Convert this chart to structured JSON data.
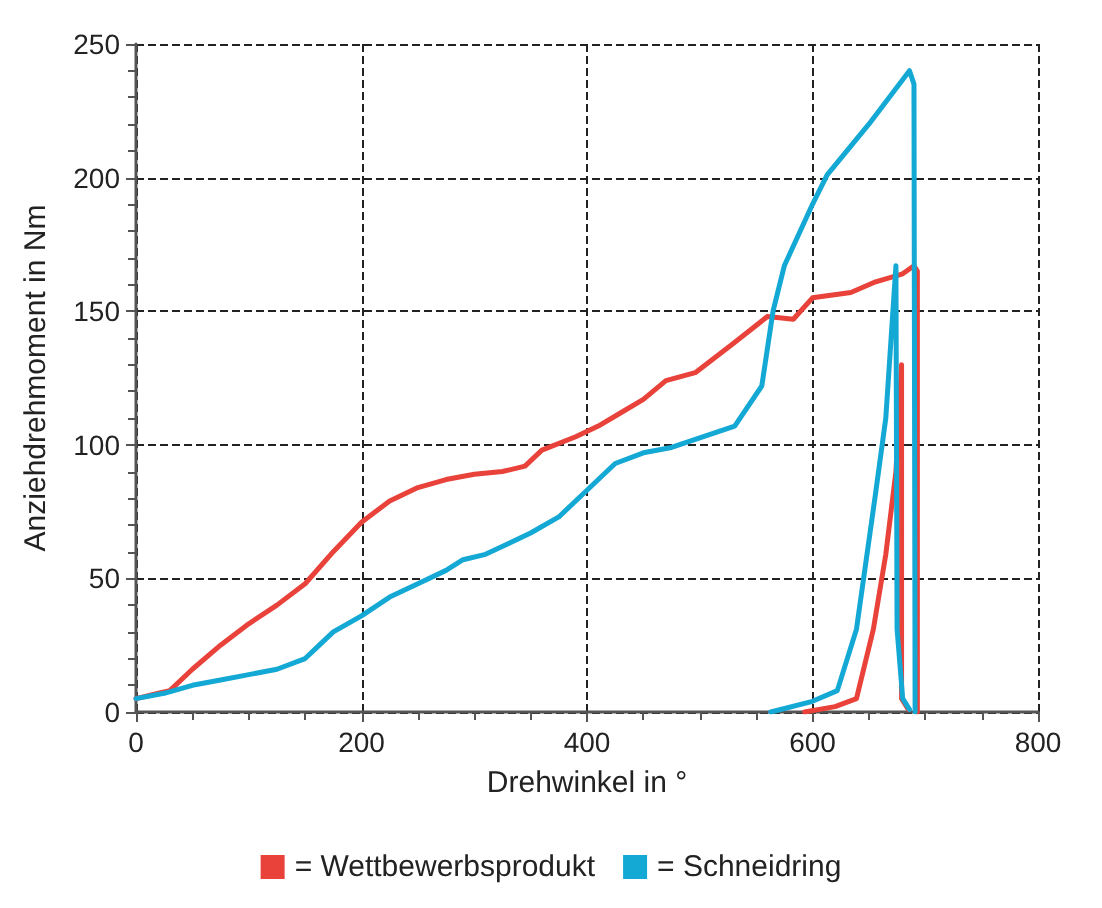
{
  "chart_data": {
    "type": "line",
    "xlabel": "Drehwinkel in °",
    "ylabel": "Anziehdrehmoment in Nm",
    "xlim": [
      0,
      800
    ],
    "xticks": [
      0,
      200,
      400,
      600,
      800
    ],
    "ylim": [
      0,
      250
    ],
    "yticks": [
      0,
      50,
      100,
      150,
      200,
      250
    ],
    "grid": true,
    "legend": "bottom",
    "marker": "none",
    "line_style": "solid",
    "series": [
      {
        "name": "= Wettbewerbsprodukt",
        "color": "#e8423a",
        "x": [
          0,
          20,
          30,
          50,
          75,
          100,
          125,
          150,
          175,
          200,
          225,
          250,
          275,
          300,
          325,
          345,
          360,
          390,
          410,
          430,
          450,
          470,
          496,
          530,
          560,
          583,
          600,
          634,
          656,
          680,
          690,
          693,
          693
        ],
        "values": [
          5,
          7,
          8,
          16,
          25,
          33,
          40,
          48,
          60,
          71,
          79,
          84,
          87,
          89,
          90,
          92,
          98,
          103,
          107,
          112,
          117,
          124,
          127,
          138,
          148,
          147,
          155,
          157,
          161,
          164,
          167,
          165,
          0
        ]
      },
      {
        "name": "= Schneidring",
        "color": "#14a8d4",
        "x": [
          0,
          25,
          50,
          75,
          100,
          125,
          150,
          160,
          175,
          200,
          225,
          250,
          275,
          290,
          310,
          330,
          350,
          375,
          400,
          425,
          450,
          475,
          496,
          531,
          555,
          565,
          575,
          600,
          613,
          650,
          686,
          690,
          691
        ],
        "values": [
          5,
          7,
          10,
          12,
          14,
          16,
          20,
          24,
          30,
          36,
          43,
          48,
          53,
          57,
          59,
          63,
          67,
          73,
          83,
          93,
          97,
          99,
          102,
          107,
          122,
          150,
          167,
          190,
          201,
          220,
          240,
          235,
          0
        ]
      },
      {
        "color": "#e8423a",
        "x": [
          593,
          620,
          639,
          654,
          665,
          674,
          679,
          679,
          685
        ],
        "values": [
          0,
          2,
          5,
          31,
          59,
          90,
          130,
          5,
          1
        ]
      },
      {
        "color": "#14a8d4",
        "x": [
          563,
          600,
          622,
          639,
          656,
          665,
          674,
          675,
          680,
          686
        ],
        "values": [
          0,
          4,
          8,
          31,
          82,
          110,
          167,
          31,
          5,
          1
        ]
      }
    ]
  }
}
